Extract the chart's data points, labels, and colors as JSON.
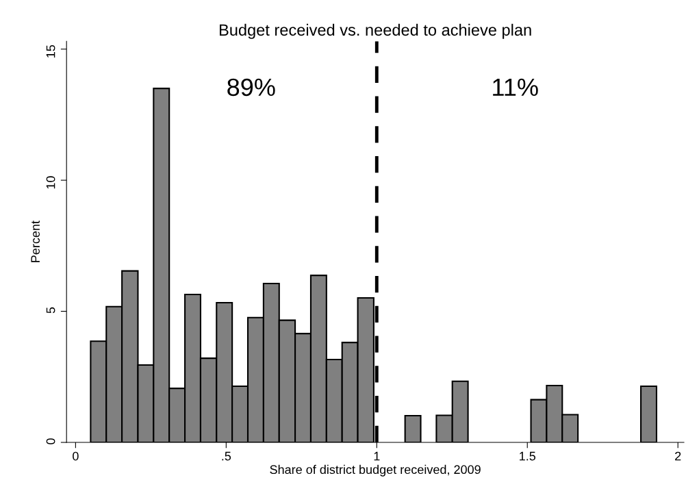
{
  "chart_data": {
    "type": "histogram",
    "title": "Budget received vs. needed to achieve plan",
    "xlabel": "Share of district budget received, 2009",
    "ylabel": "Percent",
    "bins": [
      0.05,
      0.102,
      0.154,
      0.207,
      0.259,
      0.311,
      0.363,
      0.415,
      0.468,
      0.52,
      0.572,
      0.624,
      0.676,
      0.729,
      0.781,
      0.833,
      0.885,
      0.937,
      0.99,
      1.042,
      1.094,
      1.146,
      1.198,
      1.251,
      1.303,
      1.355,
      1.407,
      1.459,
      1.512,
      1.564,
      1.616,
      1.668,
      1.72,
      1.773,
      1.825,
      1.877,
      1.929
    ],
    "values": [
      3.86,
      5.18,
      6.54,
      2.95,
      13.5,
      2.06,
      5.64,
      3.21,
      5.33,
      2.14,
      4.76,
      6.06,
      4.66,
      4.15,
      6.37,
      3.16,
      3.81,
      5.51,
      0,
      0,
      1.02,
      0,
      1.03,
      2.33,
      0,
      0,
      0,
      0,
      1.63,
      2.17,
      1.06,
      0,
      0,
      0,
      0,
      2.14
    ],
    "color": "#808080",
    "xlim": [
      -0.03,
      2.02
    ],
    "ylim": [
      0,
      15.3
    ],
    "xticks": [
      0,
      {
        "value": 0.5,
        "label": ".5"
      },
      1,
      1.5,
      2
    ],
    "yticks": [
      0,
      5,
      10,
      15
    ],
    "ref_lines": [
      {
        "axis": "x",
        "value": 1,
        "color": "#000000",
        "line_style": "dashed"
      }
    ],
    "annotations": [
      "89%",
      "11%"
    ],
    "grid": false
  }
}
